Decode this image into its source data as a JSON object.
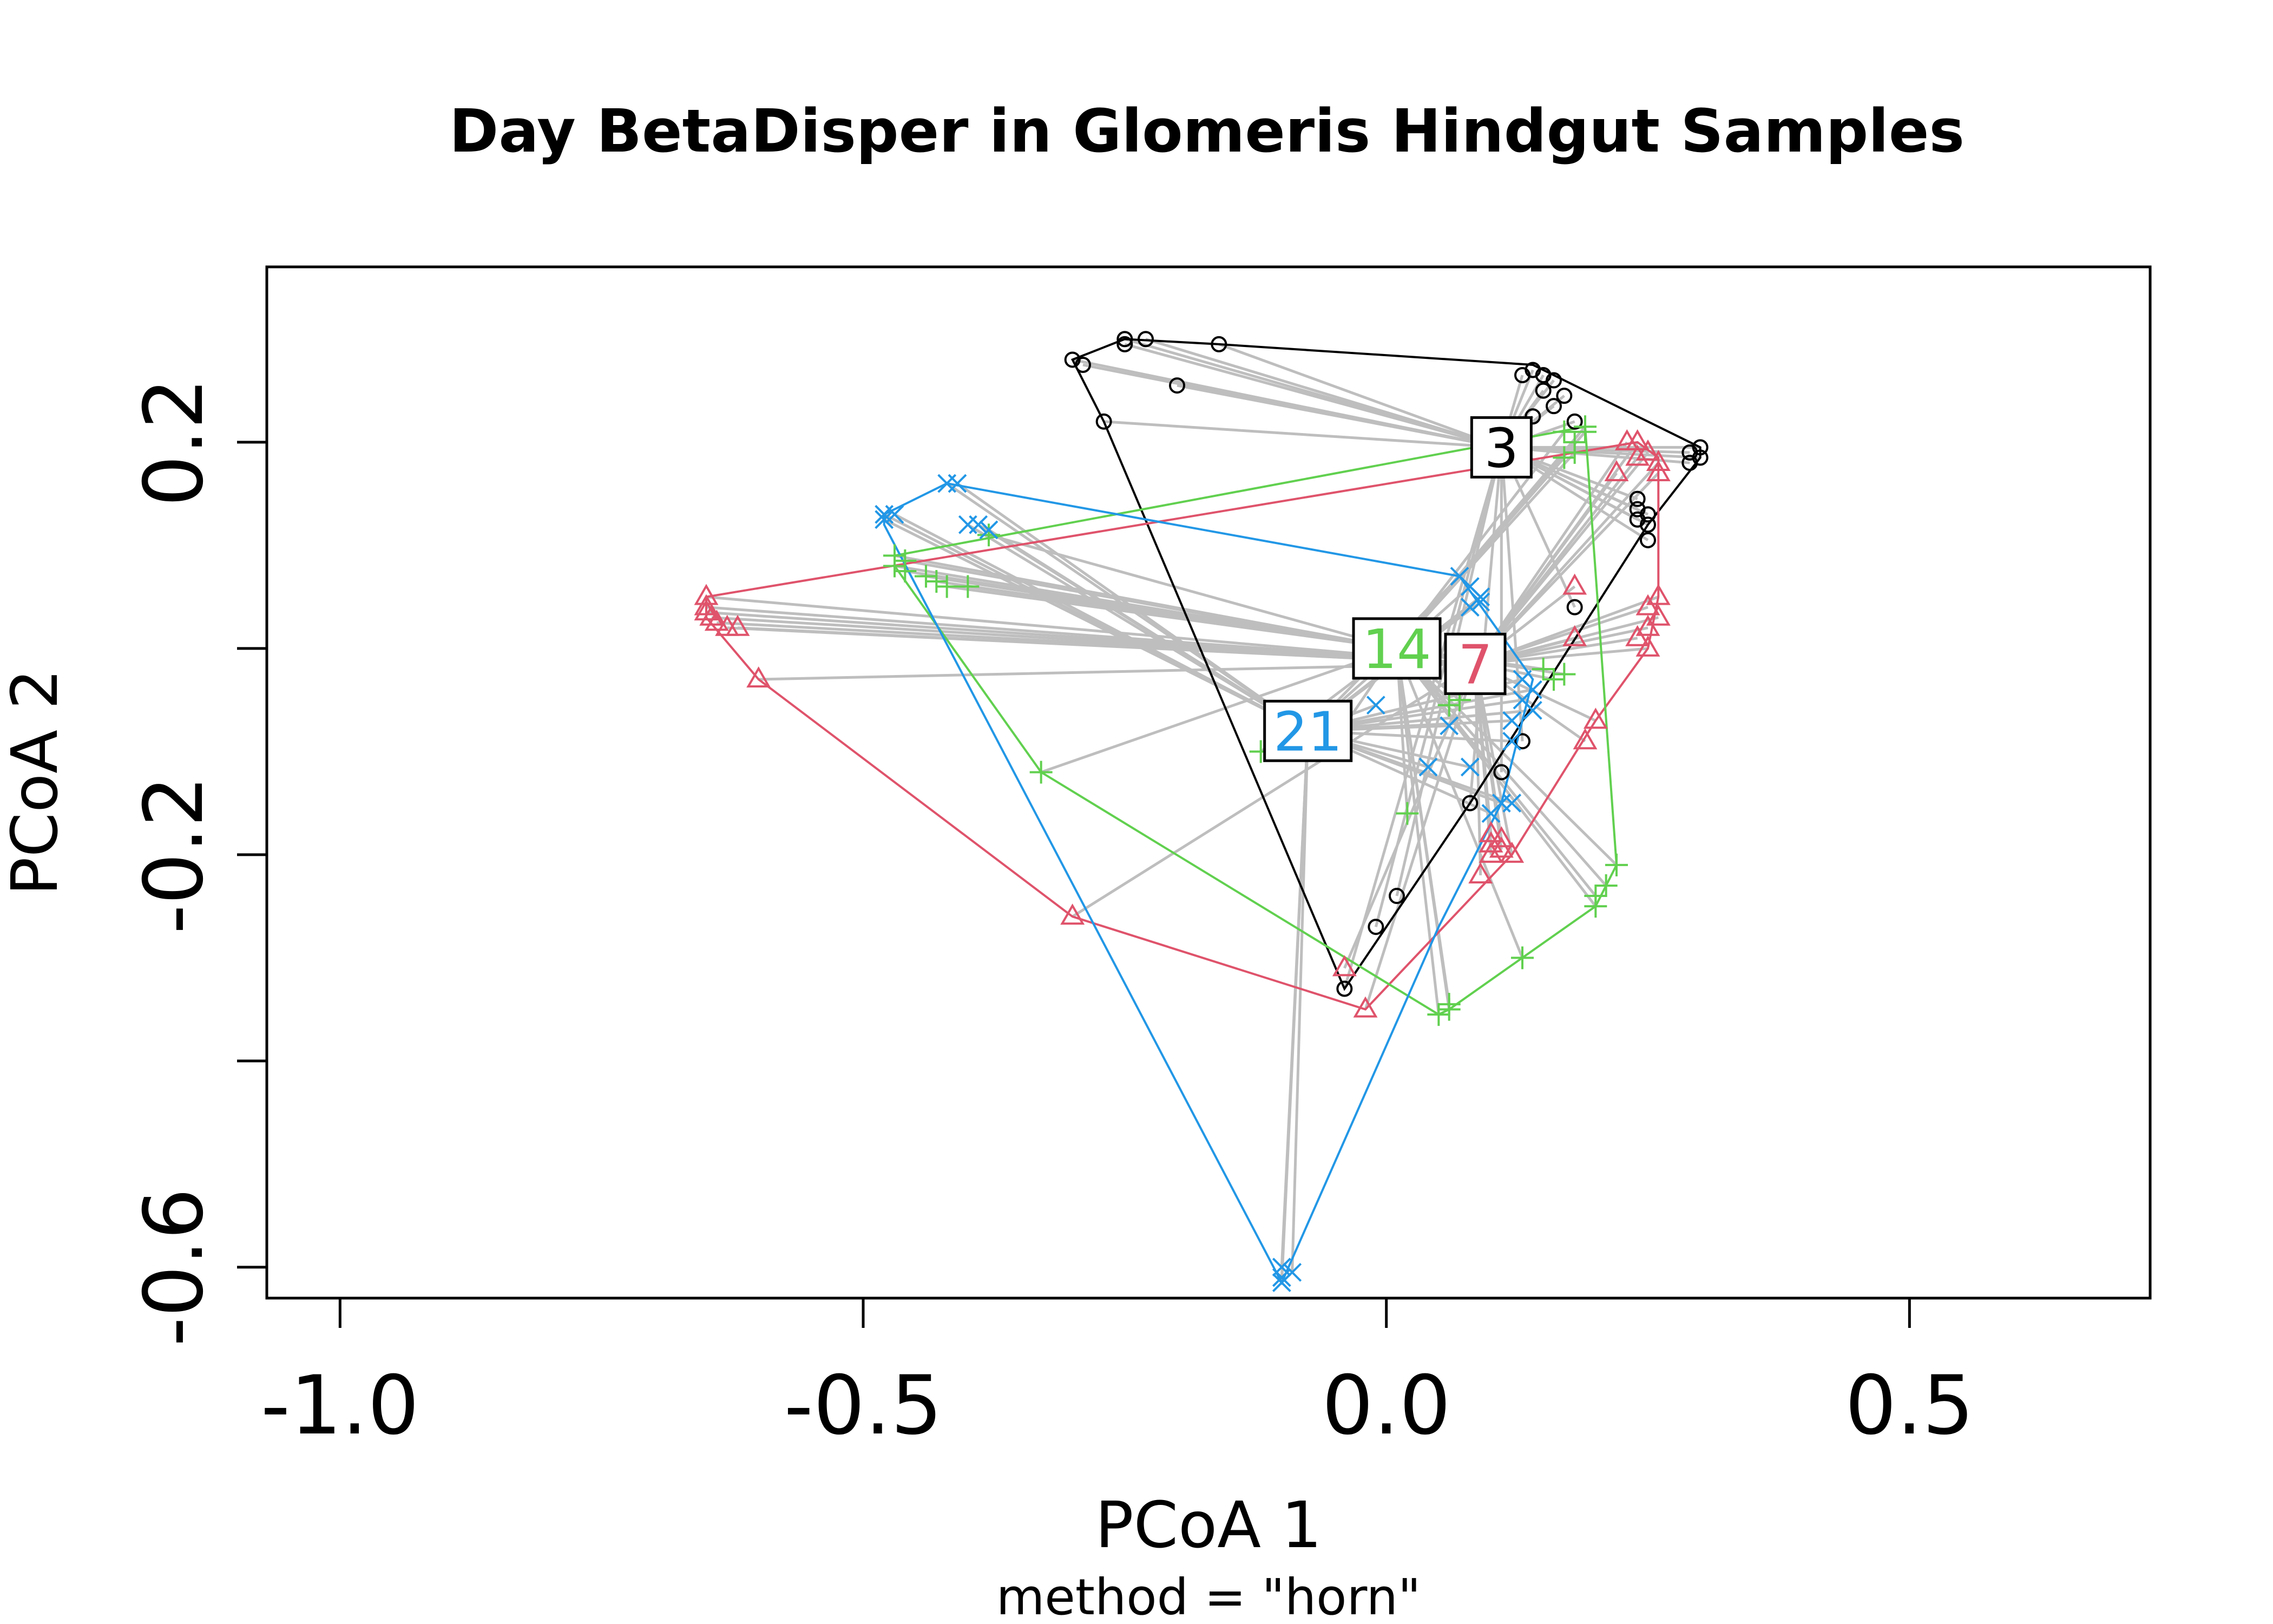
{
  "chart_data": {
    "type": "scatter",
    "title": "Day BetaDisper in Glomeris Hindgut Samples",
    "xlabel": "PCoA 1",
    "ylabel": "PCoA 2",
    "sub": "method = \"horn\"",
    "xlim": [
      -1.07,
      0.73
    ],
    "ylim": [
      -0.63,
      0.37
    ],
    "xticks": [
      -1.0,
      -0.5,
      0.0,
      0.5
    ],
    "xtick_labels": [
      "-1.0",
      "-0.5",
      "0.0",
      "0.5"
    ],
    "yticks": [
      0.2,
      -0.2,
      -0.6
    ],
    "ytick_labels": [
      "0.2",
      "-0.2",
      "-0.6"
    ],
    "extra_yticks": [
      0.0,
      -0.4
    ],
    "spider_color": "#bebebe",
    "groups": [
      {
        "label": "3",
        "color": "#000000",
        "marker": "circle",
        "centroid": [
          0.11,
          0.195
        ],
        "hull": [
          [
            -0.3,
            0.28
          ],
          [
            -0.25,
            0.3
          ],
          [
            -0.16,
            0.295
          ],
          [
            0.14,
            0.275
          ],
          [
            0.3,
            0.195
          ],
          [
            0.3,
            0.185
          ],
          [
            0.25,
            0.12
          ],
          [
            0.08,
            -0.15
          ],
          [
            -0.04,
            -0.33
          ],
          [
            -0.27,
            0.22
          ]
        ],
        "points": [
          [
            -0.3,
            0.28
          ],
          [
            -0.29,
            0.275
          ],
          [
            -0.25,
            0.295
          ],
          [
            -0.25,
            0.3
          ],
          [
            -0.23,
            0.3
          ],
          [
            -0.16,
            0.295
          ],
          [
            -0.2,
            0.255
          ],
          [
            -0.27,
            0.22
          ],
          [
            0.13,
            0.265
          ],
          [
            0.14,
            0.27
          ],
          [
            0.15,
            0.265
          ],
          [
            0.16,
            0.26
          ],
          [
            0.15,
            0.25
          ],
          [
            0.17,
            0.245
          ],
          [
            0.16,
            0.235
          ],
          [
            0.18,
            0.22
          ],
          [
            0.14,
            0.225
          ],
          [
            0.3,
            0.195
          ],
          [
            0.3,
            0.185
          ],
          [
            0.29,
            0.19
          ],
          [
            0.29,
            0.18
          ],
          [
            0.24,
            0.145
          ],
          [
            0.24,
            0.135
          ],
          [
            0.24,
            0.125
          ],
          [
            0.25,
            0.13
          ],
          [
            0.25,
            0.12
          ],
          [
            0.25,
            0.105
          ],
          [
            0.18,
            0.04
          ],
          [
            0.13,
            -0.09
          ],
          [
            0.11,
            -0.12
          ],
          [
            0.08,
            -0.15
          ],
          [
            0.01,
            -0.24
          ],
          [
            -0.01,
            -0.27
          ],
          [
            -0.04,
            -0.33
          ]
        ]
      },
      {
        "label": "7",
        "color": "#df536b",
        "marker": "triangle",
        "centroid": [
          0.085,
          -0.015
        ],
        "hull": [
          [
            -0.65,
            0.05
          ],
          [
            0.24,
            0.2
          ],
          [
            0.26,
            0.185
          ],
          [
            0.26,
            0.05
          ],
          [
            0.25,
            0.0
          ],
          [
            0.2,
            -0.07
          ],
          [
            0.12,
            -0.2
          ],
          [
            -0.02,
            -0.35
          ],
          [
            -0.3,
            -0.26
          ],
          [
            -0.6,
            -0.03
          ],
          [
            -0.65,
            0.03
          ]
        ],
        "points": [
          [
            -0.65,
            0.05
          ],
          [
            -0.65,
            0.04
          ],
          [
            -0.65,
            0.035
          ],
          [
            -0.645,
            0.03
          ],
          [
            -0.64,
            0.025
          ],
          [
            -0.63,
            0.02
          ],
          [
            -0.62,
            0.02
          ],
          [
            -0.6,
            -0.03
          ],
          [
            -0.3,
            -0.26
          ],
          [
            -0.02,
            -0.35
          ],
          [
            -0.04,
            -0.31
          ],
          [
            0.1,
            -0.2
          ],
          [
            0.11,
            -0.195
          ],
          [
            0.1,
            -0.19
          ],
          [
            0.11,
            -0.185
          ],
          [
            0.1,
            -0.18
          ],
          [
            0.12,
            -0.2
          ],
          [
            0.09,
            -0.22
          ],
          [
            0.2,
            -0.07
          ],
          [
            0.19,
            -0.09
          ],
          [
            0.25,
            0.0
          ],
          [
            0.24,
            0.01
          ],
          [
            0.25,
            0.02
          ],
          [
            0.26,
            0.03
          ],
          [
            0.25,
            0.04
          ],
          [
            0.26,
            0.05
          ],
          [
            0.18,
            0.06
          ],
          [
            0.18,
            0.01
          ],
          [
            0.24,
            0.2
          ],
          [
            0.23,
            0.2
          ],
          [
            0.25,
            0.19
          ],
          [
            0.24,
            0.185
          ],
          [
            0.26,
            0.18
          ],
          [
            0.26,
            0.17
          ],
          [
            0.22,
            0.17
          ]
        ]
      },
      {
        "label": "14",
        "color": "#61d04f",
        "marker": "plus",
        "centroid": [
          0.01,
          0.0
        ],
        "hull": [
          [
            -0.47,
            0.09
          ],
          [
            0.19,
            0.215
          ],
          [
            0.22,
            -0.21
          ],
          [
            0.2,
            -0.25
          ],
          [
            0.13,
            -0.3
          ],
          [
            0.06,
            -0.35
          ],
          [
            0.05,
            -0.355
          ],
          [
            -0.33,
            -0.12
          ],
          [
            -0.47,
            0.08
          ]
        ],
        "points": [
          [
            -0.47,
            0.09
          ],
          [
            -0.47,
            0.08
          ],
          [
            -0.46,
            0.085
          ],
          [
            -0.46,
            0.075
          ],
          [
            -0.44,
            0.07
          ],
          [
            -0.43,
            0.065
          ],
          [
            -0.42,
            0.06
          ],
          [
            -0.4,
            0.06
          ],
          [
            -0.38,
            0.11
          ],
          [
            -0.33,
            -0.12
          ],
          [
            -0.12,
            -0.1
          ],
          [
            -0.05,
            -0.09
          ],
          [
            0.02,
            -0.16
          ],
          [
            0.05,
            -0.355
          ],
          [
            0.06,
            -0.35
          ],
          [
            0.06,
            -0.345
          ],
          [
            0.13,
            -0.3
          ],
          [
            0.2,
            -0.25
          ],
          [
            0.2,
            -0.24
          ],
          [
            0.21,
            -0.23
          ],
          [
            0.22,
            -0.21
          ],
          [
            0.06,
            -0.055
          ],
          [
            0.07,
            -0.05
          ],
          [
            0.15,
            -0.02
          ],
          [
            0.16,
            -0.03
          ],
          [
            0.17,
            -0.025
          ],
          [
            0.17,
            0.185
          ],
          [
            0.18,
            0.19
          ],
          [
            0.19,
            0.21
          ],
          [
            0.19,
            0.215
          ],
          [
            0.18,
            0.2
          ],
          [
            0.17,
            0.21
          ]
        ]
      },
      {
        "label": "21",
        "color": "#2297e6",
        "marker": "x",
        "centroid": [
          -0.075,
          -0.08
        ],
        "hull": [
          [
            -0.48,
            0.13
          ],
          [
            -0.42,
            0.16
          ],
          [
            0.07,
            0.07
          ],
          [
            0.14,
            -0.03
          ],
          [
            0.11,
            -0.15
          ],
          [
            0.05,
            -0.27
          ],
          [
            -0.1,
            -0.615
          ],
          [
            -0.48,
            0.12
          ]
        ],
        "points": [
          [
            -0.48,
            0.13
          ],
          [
            -0.48,
            0.125
          ],
          [
            -0.47,
            0.13
          ],
          [
            -0.42,
            0.16
          ],
          [
            -0.41,
            0.16
          ],
          [
            -0.4,
            0.12
          ],
          [
            -0.39,
            0.12
          ],
          [
            -0.38,
            0.115
          ],
          [
            -0.1,
            -0.6
          ],
          [
            -0.1,
            -0.61
          ],
          [
            -0.1,
            -0.615
          ],
          [
            -0.09,
            -0.605
          ],
          [
            -0.01,
            -0.055
          ],
          [
            0.06,
            -0.075
          ],
          [
            0.04,
            -0.115
          ],
          [
            0.08,
            -0.115
          ],
          [
            0.11,
            -0.15
          ],
          [
            0.12,
            -0.15
          ],
          [
            0.1,
            -0.16
          ],
          [
            0.07,
            0.07
          ],
          [
            0.08,
            0.06
          ],
          [
            0.09,
            0.05
          ],
          [
            0.08,
            0.04
          ],
          [
            0.09,
            0.045
          ],
          [
            0.13,
            -0.03
          ],
          [
            0.14,
            -0.04
          ],
          [
            0.13,
            -0.05
          ],
          [
            0.14,
            -0.06
          ],
          [
            0.12,
            -0.07
          ],
          [
            0.12,
            -0.09
          ]
        ]
      }
    ]
  }
}
